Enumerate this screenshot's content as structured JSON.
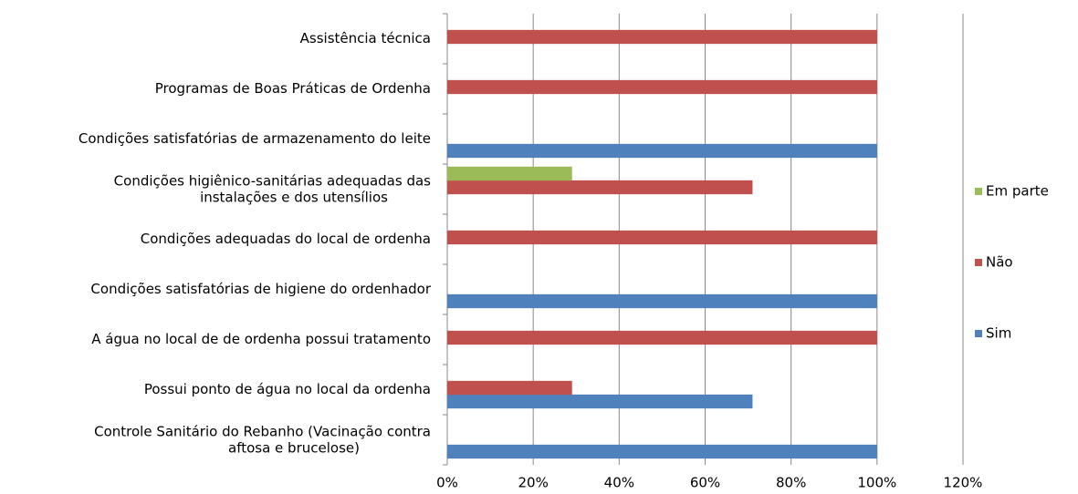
{
  "chart_data": {
    "type": "bar",
    "orientation": "horizontal",
    "categories": [
      "Assistência técnica",
      "Programas de Boas Práticas de Ordenha",
      "Condições satisfatórias de armazenamento  do leite",
      "Condições higiênico-sanitárias adequadas das instalações e dos utensílios",
      "Condições adequadas do local de ordenha",
      "Condições satisfatórias de higiene do ordenhador",
      "A água no local de de ordenha possui tratamento",
      "Possui ponto de água no local da ordenha",
      "Controle Sanitário do Rebanho (Vacinação contra aftosa e brucelose)"
    ],
    "series": [
      {
        "name": "Sim",
        "color": "#4f81bd",
        "values": [
          0,
          0,
          100,
          0,
          0,
          100,
          0,
          71,
          100
        ]
      },
      {
        "name": "Não",
        "color": "#c0504d",
        "values": [
          100,
          100,
          0,
          71,
          100,
          0,
          100,
          29,
          0
        ]
      },
      {
        "name": "Em parte",
        "color": "#9bbb59",
        "values": [
          0,
          0,
          0,
          29,
          0,
          0,
          0,
          0,
          0
        ]
      }
    ],
    "xlim": [
      0,
      120
    ],
    "xticks": [
      {
        "value": 0,
        "label": "0%"
      },
      {
        "value": 20,
        "label": "20%"
      },
      {
        "value": 40,
        "label": "40%"
      },
      {
        "value": 60,
        "label": "60%"
      },
      {
        "value": 80,
        "label": "80%"
      },
      {
        "value": 100,
        "label": "100%"
      },
      {
        "value": 120,
        "label": "120%"
      }
    ],
    "grid": true,
    "legend": "right"
  }
}
